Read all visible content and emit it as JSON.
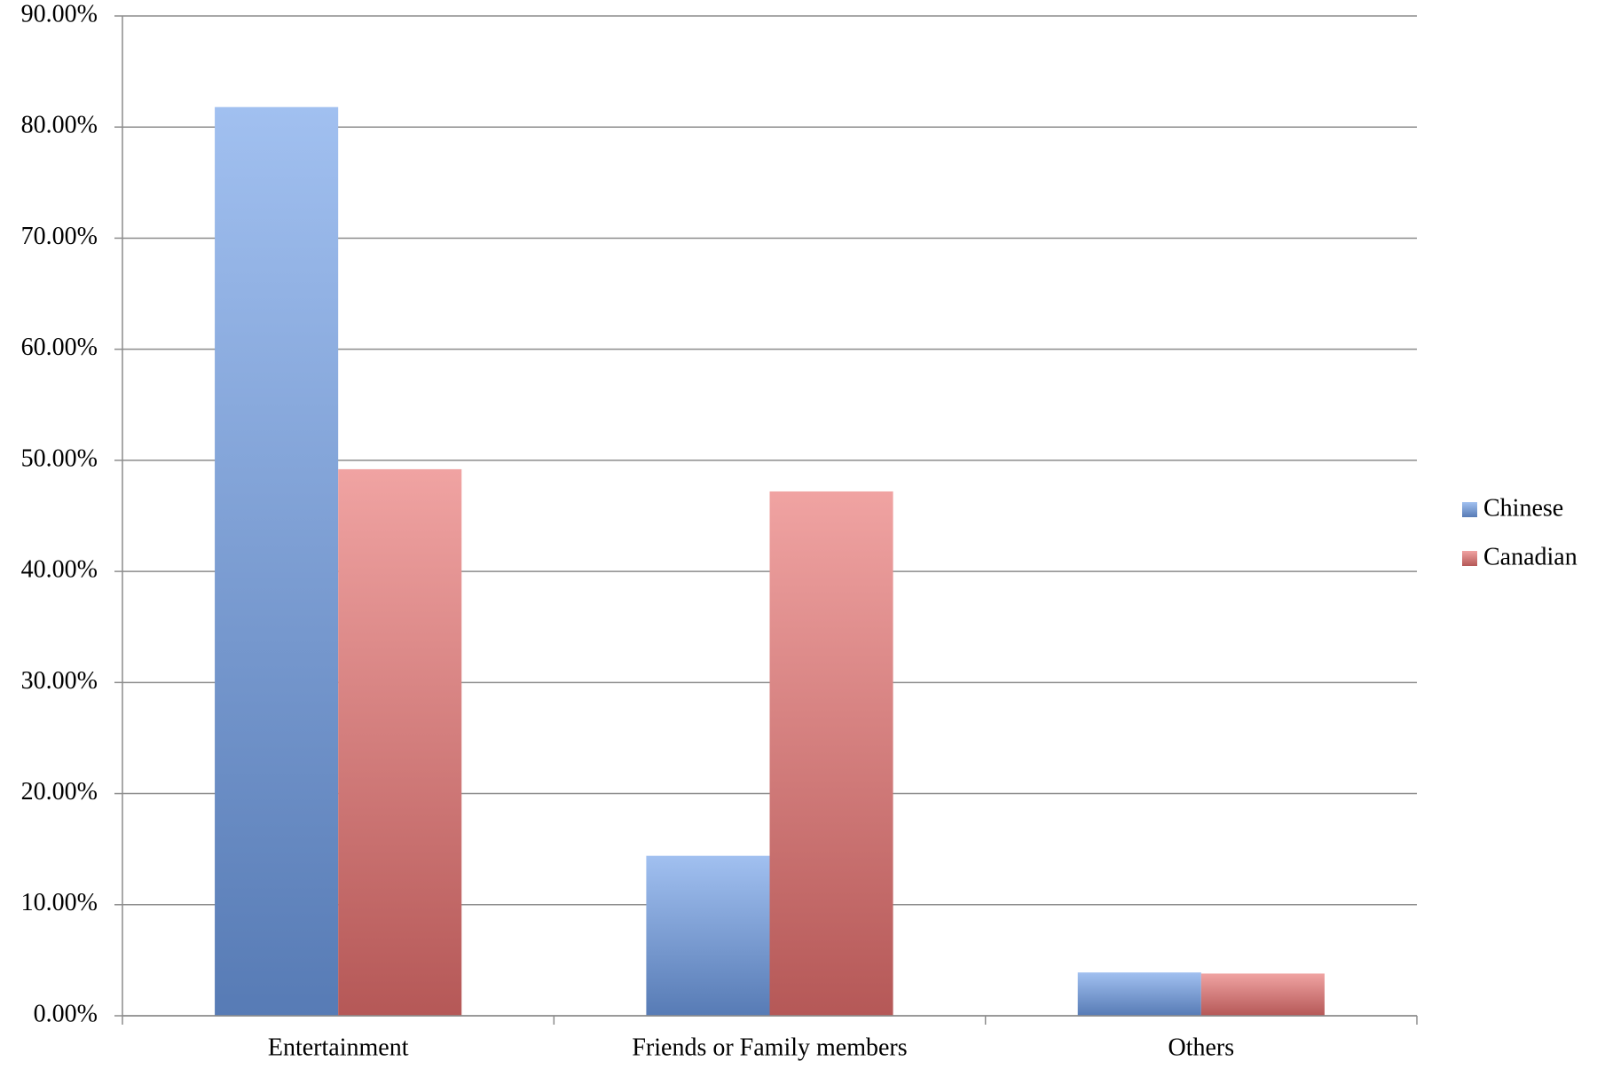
{
  "chart_data": {
    "type": "bar",
    "categories": [
      "Entertainment",
      "Friends or Family members",
      "Others"
    ],
    "series": [
      {
        "name": "Chinese",
        "color": "#6f9ee8",
        "values": [
          81.8,
          14.4,
          3.9
        ]
      },
      {
        "name": "Canadian",
        "color": "#e87170",
        "values": [
          49.2,
          47.2,
          3.8
        ]
      }
    ],
    "ylim": [
      0,
      90
    ],
    "yticks": [
      {
        "value": 0,
        "label": "0.00%"
      },
      {
        "value": 10,
        "label": "10.00%"
      },
      {
        "value": 20,
        "label": "20.00%"
      },
      {
        "value": 30,
        "label": "30.00%"
      },
      {
        "value": 40,
        "label": "40.00%"
      },
      {
        "value": 50,
        "label": "50.00%"
      },
      {
        "value": 60,
        "label": "60.00%"
      },
      {
        "value": 70,
        "label": "70.00%"
      },
      {
        "value": 80,
        "label": "80.00%"
      },
      {
        "value": 90,
        "label": "90.00%"
      }
    ],
    "grid": true,
    "legend": "right"
  }
}
